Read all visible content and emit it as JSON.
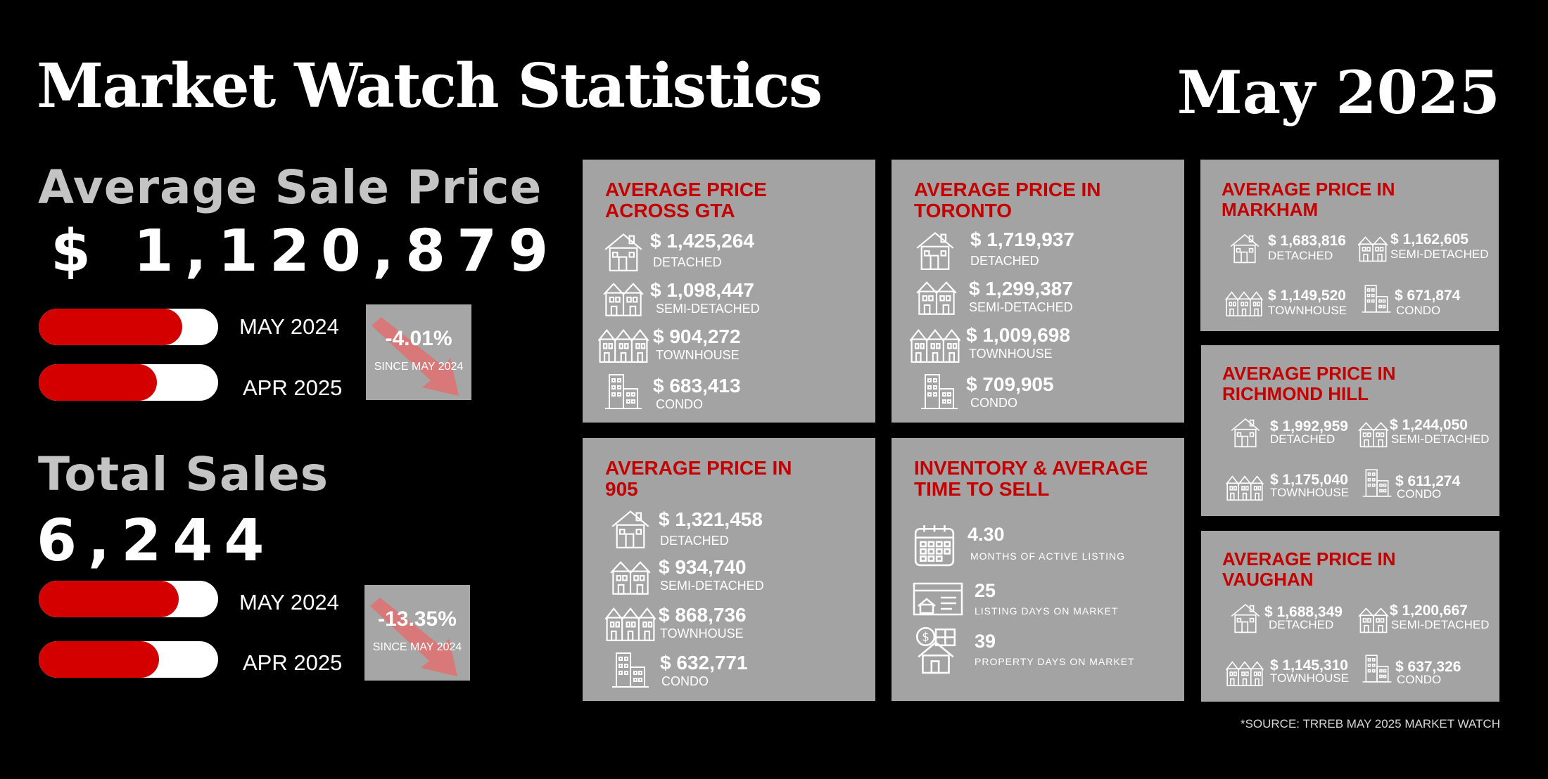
{
  "header": {
    "title": "Market Watch Statistics",
    "month": "May 2025"
  },
  "avg_sale": {
    "label": "Average Sale Price",
    "value": "$ 1,120,879",
    "bars": [
      {
        "label": "MAY 2024",
        "level": 0.8
      },
      {
        "label": "APR 2025",
        "level": 0.66
      }
    ],
    "change": {
      "value": "-4.01%",
      "since": "SINCE MAY 2024"
    }
  },
  "total_sales": {
    "label": "Total Sales",
    "value": "6,244",
    "bars": [
      {
        "label": "MAY 2024",
        "level": 0.78
      },
      {
        "label": "APR 2025",
        "level": 0.67
      }
    ],
    "change": {
      "value": "-13.35%",
      "since": "SINCE MAY 2024"
    }
  },
  "gta": {
    "title": "AVERAGE PRICE\nACROSS GTA",
    "items": [
      {
        "price": "$ 1,425,264",
        "type": "DETACHED",
        "icon": "house-icon"
      },
      {
        "price": "$ 1,098,447",
        "type": "SEMI-DETACHED",
        "icon": "semi-detached-icon"
      },
      {
        "price": "$ 904,272",
        "type": "TOWNHOUSE",
        "icon": "townhouse-icon"
      },
      {
        "price": "$ 683,413",
        "type": "CONDO",
        "icon": "condo-icon"
      }
    ]
  },
  "toronto": {
    "title": "AVERAGE PRICE IN\nTORONTO",
    "items": [
      {
        "price": "$ 1,719,937",
        "type": "DETACHED",
        "icon": "house-icon"
      },
      {
        "price": "$ 1,299,387",
        "type": "SEMI-DETACHED",
        "icon": "semi-detached-icon"
      },
      {
        "price": "$ 1,009,698",
        "type": "TOWNHOUSE",
        "icon": "townhouse-icon"
      },
      {
        "price": "$ 709,905",
        "type": "CONDO",
        "icon": "condo-icon"
      }
    ]
  },
  "r905": {
    "title": "AVERAGE PRICE IN\n905",
    "items": [
      {
        "price": "$ 1,321,458",
        "type": "DETACHED",
        "icon": "house-icon"
      },
      {
        "price": "$ 934,740",
        "type": "SEMI-DETACHED",
        "icon": "semi-detached-icon"
      },
      {
        "price": "$ 868,736",
        "type": "TOWNHOUSE",
        "icon": "townhouse-icon"
      },
      {
        "price": "$ 632,771",
        "type": "CONDO",
        "icon": "condo-icon"
      }
    ]
  },
  "inventory": {
    "title": "INVENTORY & AVERAGE\nTIME TO SELL",
    "items": [
      {
        "value": "4.30",
        "label": "MONTHS OF ACTIVE LISTING",
        "icon": "calendar-icon"
      },
      {
        "value": "25",
        "label": "LISTING DAYS ON MARKET",
        "icon": "listing-icon"
      },
      {
        "value": "39",
        "label": "PROPERTY DAYS ON MARKET",
        "icon": "property-money-icon"
      }
    ]
  },
  "markham": {
    "title": "AVERAGE PRICE IN\nMARKHAM",
    "items": [
      {
        "price": "$ 1,683,816",
        "type": "DETACHED",
        "icon": "house-icon"
      },
      {
        "price": "$ 1,162,605",
        "type": "SEMI-DETACHED",
        "icon": "semi-detached-icon"
      },
      {
        "price": "$ 1,149,520",
        "type": "TOWNHOUSE",
        "icon": "townhouse-icon"
      },
      {
        "price": "$ 671,874",
        "type": "CONDO",
        "icon": "condo-icon"
      }
    ]
  },
  "richmond": {
    "title": "AVERAGE PRICE IN\nRICHMOND HILL",
    "items": [
      {
        "price": "$ 1,992,959",
        "type": "DETACHED",
        "icon": "house-icon"
      },
      {
        "price": "$ 1,244,050",
        "type": "SEMI-DETACHED",
        "icon": "semi-detached-icon"
      },
      {
        "price": "$ 1,175,040",
        "type": "TOWNHOUSE",
        "icon": "townhouse-icon"
      },
      {
        "price": "$ 611,274",
        "type": "CONDO",
        "icon": "condo-icon"
      }
    ]
  },
  "vaughan": {
    "title": "AVERAGE PRICE IN\nVAUGHAN",
    "items": [
      {
        "price": "$ 1,688,349",
        "type": "DETACHED",
        "icon": "house-icon"
      },
      {
        "price": "$ 1,200,667",
        "type": "SEMI-DETACHED",
        "icon": "semi-detached-icon"
      },
      {
        "price": "$ 1,145,310",
        "type": "TOWNHOUSE",
        "icon": "townhouse-icon"
      },
      {
        "price": "$ 637,326",
        "type": "CONDO",
        "icon": "condo-icon"
      }
    ]
  },
  "source": "*SOURCE: TRREB MAY 2025 MARKET WATCH",
  "colors": {
    "accent": "#d40000",
    "card": "#a3a3a3",
    "background": "#000000"
  }
}
